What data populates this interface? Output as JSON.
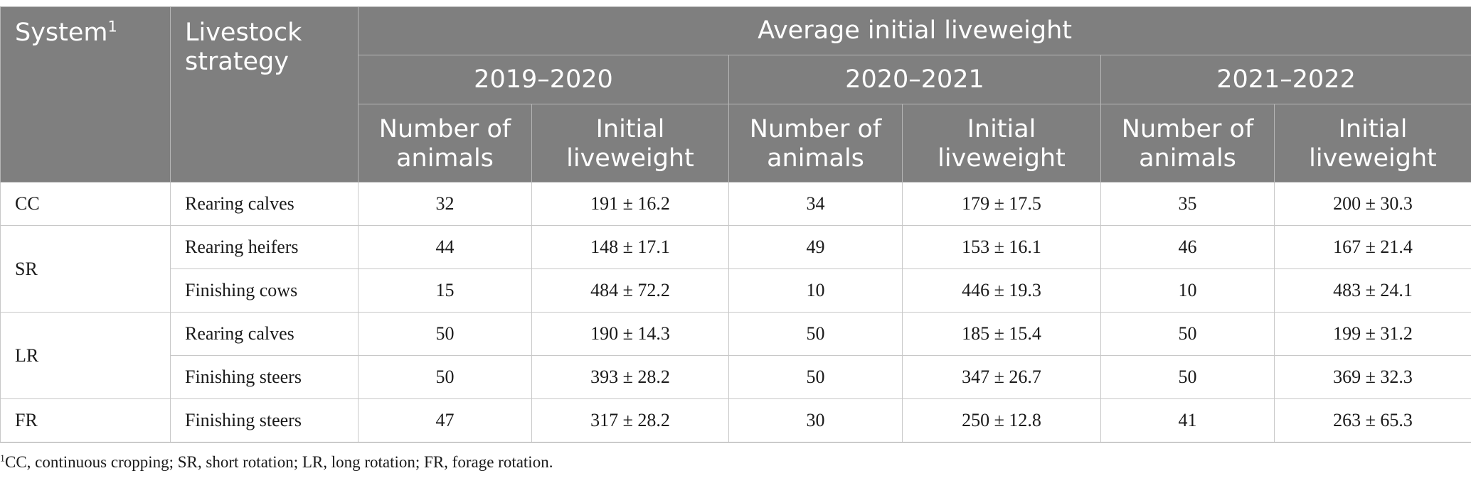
{
  "header": {
    "system_label": "System",
    "system_sup": "1",
    "strategy_label_line1": "Livestock",
    "strategy_label_line2": "strategy",
    "group_title": "Average initial liveweight",
    "periods": [
      "2019–2020",
      "2020–2021",
      "2021–2022"
    ],
    "sub_n_line1": "Number of",
    "sub_n_line2": "animals",
    "sub_w_line1": "Initial",
    "sub_w_line2": "liveweight"
  },
  "rows": [
    {
      "system": "CC",
      "strategy": "Rearing calves",
      "values": [
        "32",
        "191 ± 16.2",
        "34",
        "179 ± 17.5",
        "35",
        "200 ± 30.3"
      ]
    },
    {
      "system": "SR",
      "strategy": "Rearing heifers",
      "values": [
        "44",
        "148 ± 17.1",
        "49",
        "153 ± 16.1",
        "46",
        "167 ± 21.4"
      ]
    },
    {
      "system": "",
      "strategy": "Finishing cows",
      "values": [
        "15",
        "484 ± 72.2",
        "10",
        "446 ± 19.3",
        "10",
        "483 ± 24.1"
      ]
    },
    {
      "system": "LR",
      "strategy": "Rearing calves",
      "values": [
        "50",
        "190 ± 14.3",
        "50",
        "185 ± 15.4",
        "50",
        "199 ± 31.2"
      ]
    },
    {
      "system": "",
      "strategy": "Finishing steers",
      "values": [
        "50",
        "393 ± 28.2",
        "50",
        "347 ± 26.7",
        "50",
        "369 ± 32.3"
      ]
    },
    {
      "system": "FR",
      "strategy": "Finishing steers",
      "values": [
        "47",
        "317 ± 28.2",
        "30",
        "250 ± 12.8",
        "41",
        "263 ± 65.3"
      ]
    }
  ],
  "footnote": {
    "sup": "1",
    "text": "CC, continuous cropping; SR, short rotation; LR, long rotation; FR, forage rotation."
  }
}
